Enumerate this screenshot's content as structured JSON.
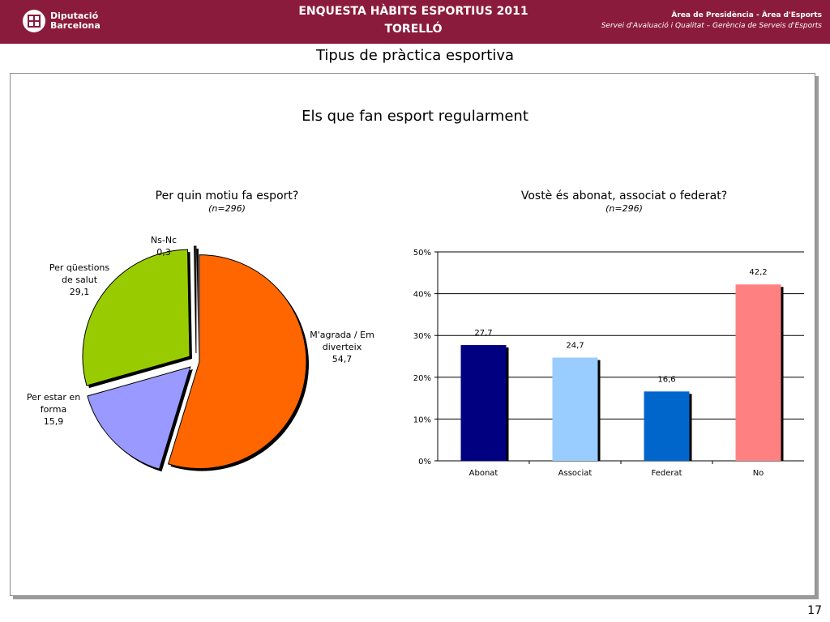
{
  "header": {
    "logo_line1": "Diputació",
    "logo_line2": "Barcelona",
    "title_line1": "ENQUESTA HÀBITS ESPORTIUS 2011",
    "title_line2": "TORELLÓ",
    "right_line1": "Àrea de Presidència  -  Àrea d'Esports",
    "right_line2": "Servei d'Avaluació i Qualitat – Gerència de Serveis d'Esports",
    "color": "#8b1b3c"
  },
  "page_title": "Tipus de pràctica esportiva",
  "main_title": "Els que fan esport regularment",
  "slide_number": "17",
  "chart_data": [
    {
      "type": "pie",
      "title": "Per quin motiu fa esport?",
      "subtitle": "(n=296)",
      "slices": [
        {
          "label": "M'agrada / Em diverteix",
          "value": 54.7,
          "value_label": "54,7",
          "color": "#ff6600"
        },
        {
          "label": "Per estar en forma",
          "value": 15.9,
          "value_label": "15,9",
          "color": "#9999ff"
        },
        {
          "label": "Per qüestions de salut",
          "value": 29.1,
          "value_label": "29,1",
          "color": "#99cc00"
        },
        {
          "label": "Ns-Nc",
          "value": 0.3,
          "value_label": "0,3",
          "color": "#3f3f3f"
        }
      ]
    },
    {
      "type": "bar",
      "title": "Vostè és abonat, associat o federat?",
      "subtitle": "(n=296)",
      "categories": [
        "Abonat",
        "Associat",
        "Federat",
        "No"
      ],
      "values": [
        27.7,
        24.7,
        16.6,
        42.2
      ],
      "value_labels": [
        "27,7",
        "24,7",
        "16,6",
        "42,2"
      ],
      "colors": [
        "#000080",
        "#99ccff",
        "#0066cc",
        "#ff8080"
      ],
      "ylim": [
        0,
        50
      ],
      "yticks": [
        "0%",
        "10%",
        "20%",
        "30%",
        "40%",
        "50%"
      ],
      "grid": true
    }
  ]
}
